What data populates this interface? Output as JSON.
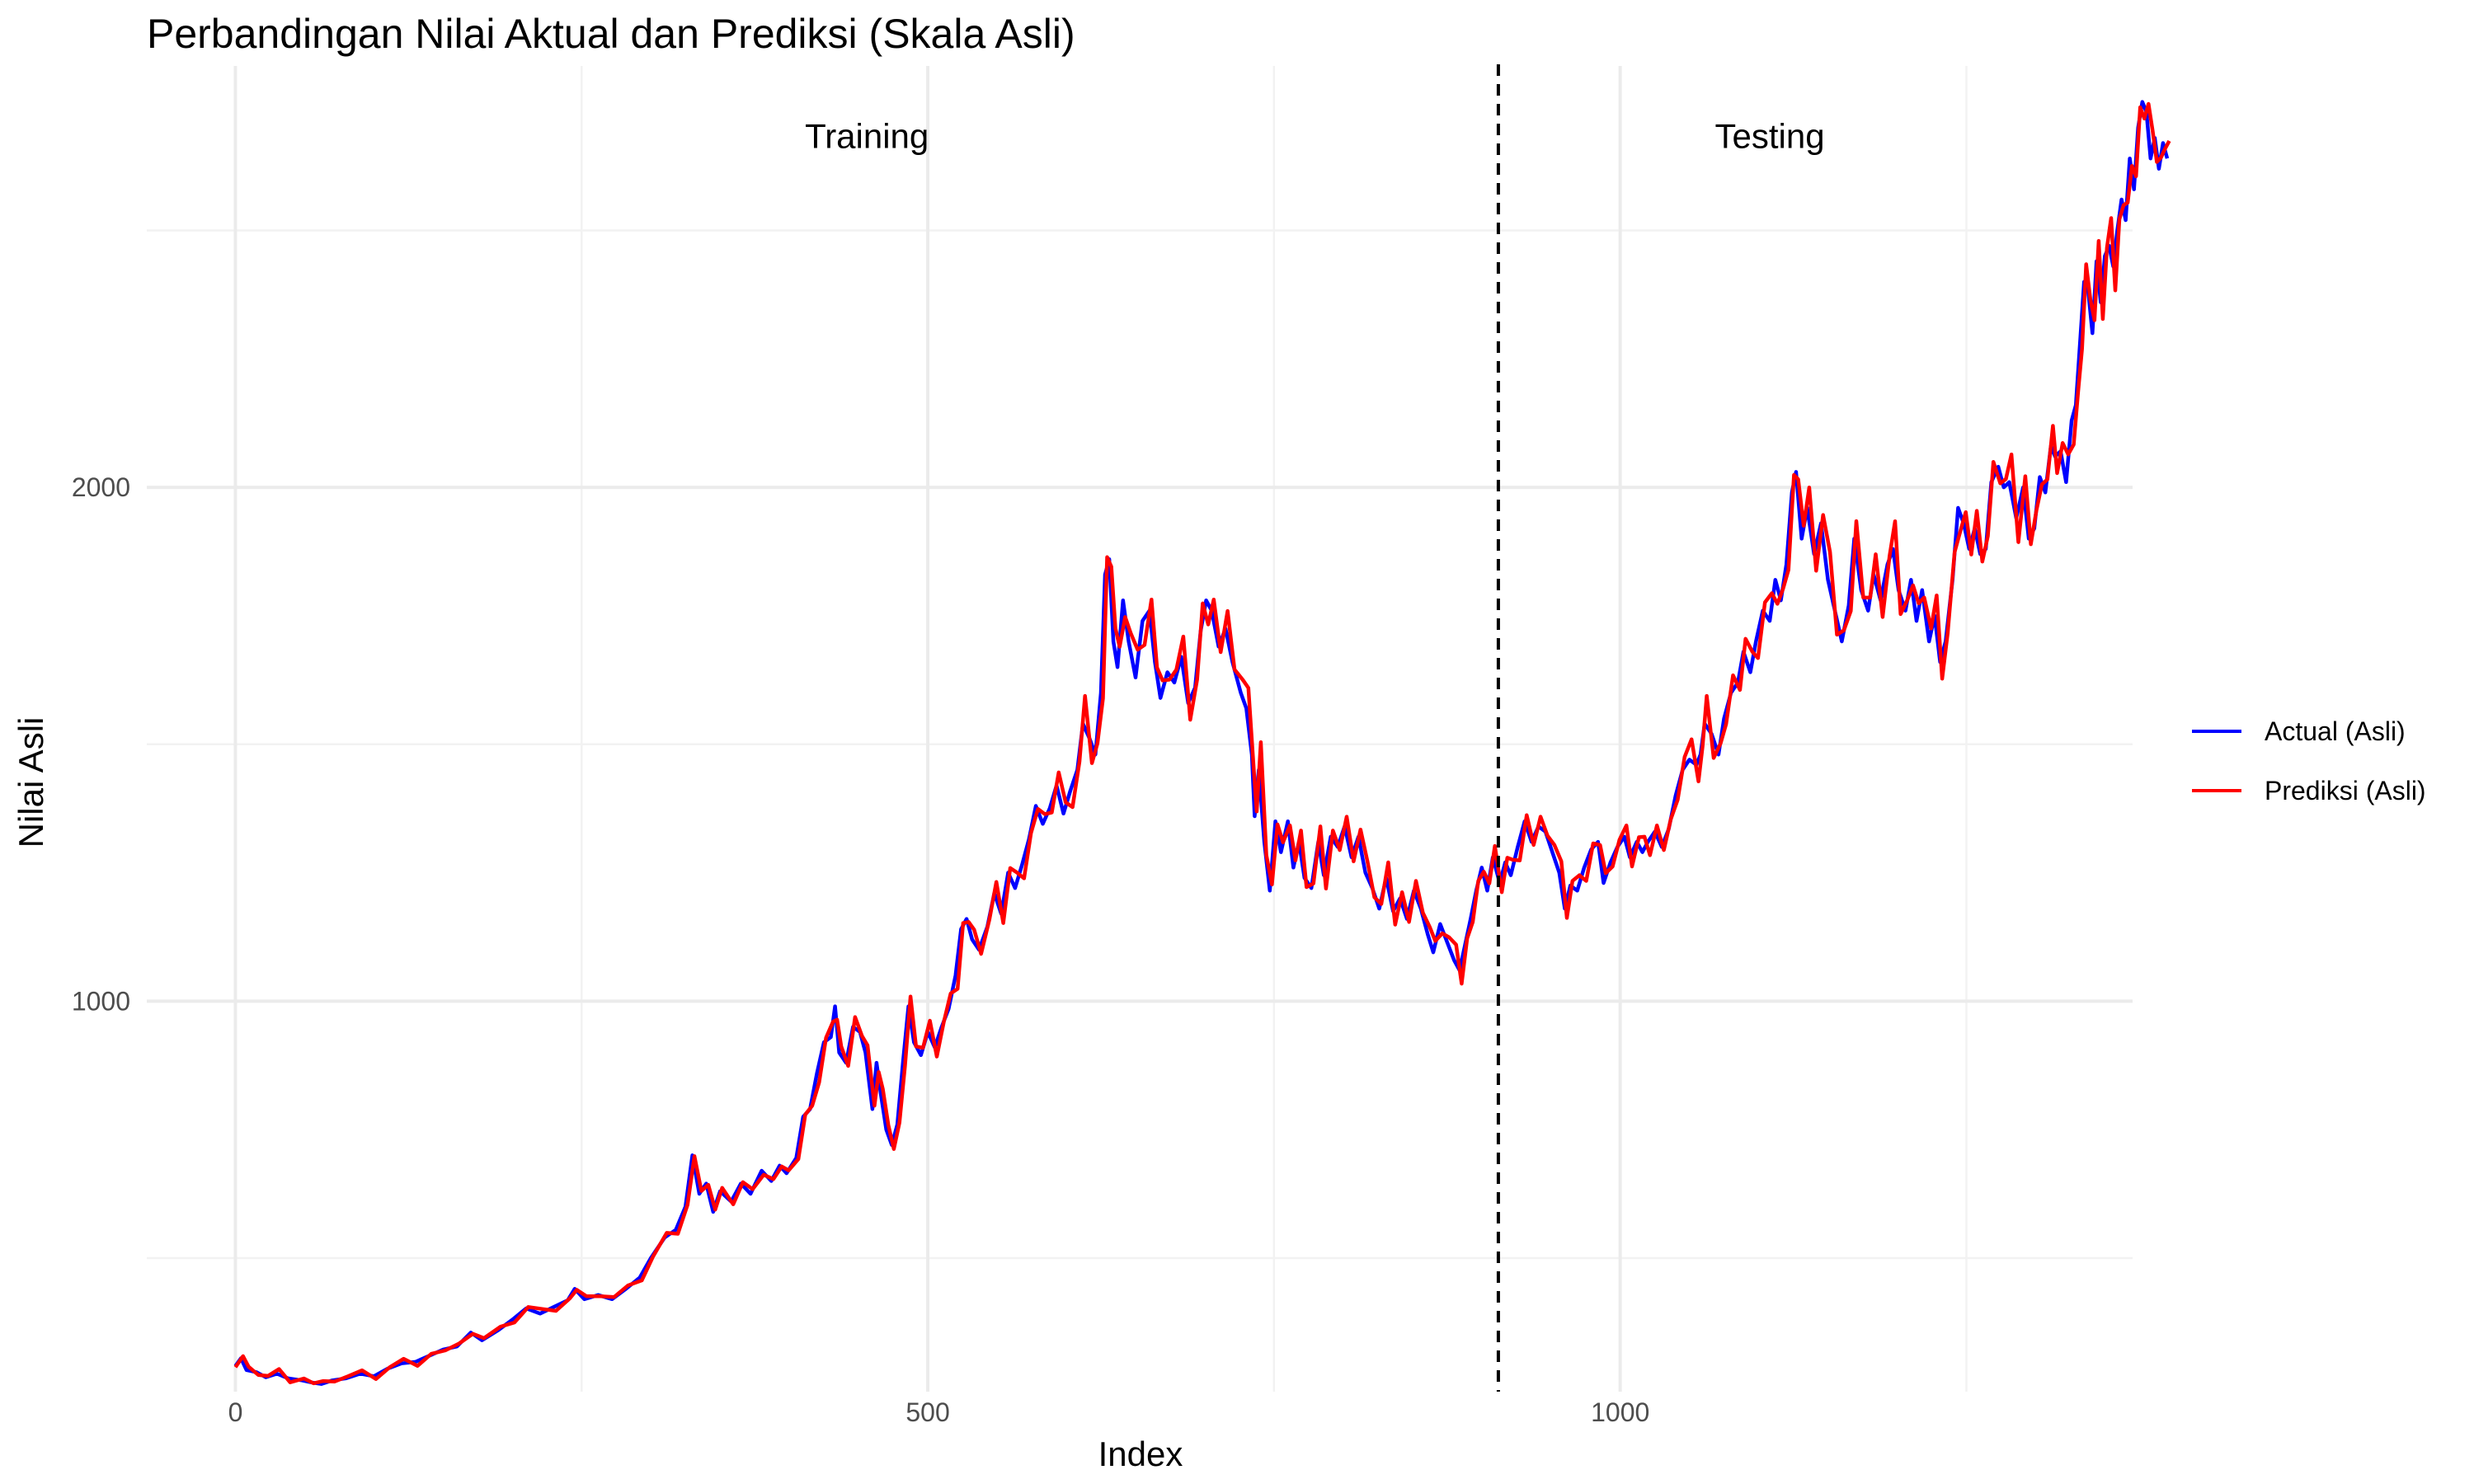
{
  "chart_data": {
    "type": "line",
    "title": "Perbandingan Nilai Aktual dan Prediksi (Skala Asli)",
    "xlabel": "Index",
    "ylabel": "Nilai Asli",
    "xlim": [
      -64,
      1370
    ],
    "ylim": [
      240,
      2820
    ],
    "x_ticks": [
      0,
      500,
      1000
    ],
    "y_ticks": [
      1000,
      2000
    ],
    "grid": true,
    "legend_position": "right",
    "split_index": 912,
    "annotations": [
      {
        "label": "Training",
        "x": 456,
        "y": 2660
      },
      {
        "label": "Testing",
        "x": 1108,
        "y": 2660
      }
    ],
    "series": [
      {
        "name": "Actual (Asli)",
        "color": "#0000ff"
      },
      {
        "name": "Prediksi (Asli)",
        "color": "#ff0000"
      }
    ],
    "anchors": [
      [
        0,
        290
      ],
      [
        4,
        305
      ],
      [
        8,
        282
      ],
      [
        15,
        278
      ],
      [
        22,
        268
      ],
      [
        30,
        275
      ],
      [
        38,
        266
      ],
      [
        48,
        262
      ],
      [
        55,
        258
      ],
      [
        62,
        255
      ],
      [
        70,
        262
      ],
      [
        80,
        266
      ],
      [
        90,
        275
      ],
      [
        100,
        270
      ],
      [
        110,
        285
      ],
      [
        120,
        295
      ],
      [
        130,
        298
      ],
      [
        140,
        310
      ],
      [
        150,
        322
      ],
      [
        160,
        328
      ],
      [
        170,
        355
      ],
      [
        178,
        340
      ],
      [
        190,
        360
      ],
      [
        200,
        380
      ],
      [
        210,
        402
      ],
      [
        220,
        392
      ],
      [
        230,
        405
      ],
      [
        240,
        418
      ],
      [
        245,
        440
      ],
      [
        252,
        420
      ],
      [
        262,
        428
      ],
      [
        272,
        420
      ],
      [
        282,
        440
      ],
      [
        292,
        462
      ],
      [
        300,
        500
      ],
      [
        310,
        540
      ],
      [
        318,
        555
      ],
      [
        325,
        600
      ],
      [
        330,
        700
      ],
      [
        335,
        625
      ],
      [
        340,
        645
      ],
      [
        345,
        590
      ],
      [
        350,
        630
      ],
      [
        358,
        610
      ],
      [
        365,
        645
      ],
      [
        372,
        625
      ],
      [
        380,
        670
      ],
      [
        387,
        650
      ],
      [
        393,
        680
      ],
      [
        398,
        665
      ],
      [
        405,
        695
      ],
      [
        410,
        775
      ],
      [
        415,
        790
      ],
      [
        420,
        860
      ],
      [
        425,
        920
      ],
      [
        430,
        930
      ],
      [
        433,
        990
      ],
      [
        436,
        900
      ],
      [
        441,
        880
      ],
      [
        446,
        950
      ],
      [
        451,
        940
      ],
      [
        455,
        900
      ],
      [
        460,
        790
      ],
      [
        463,
        880
      ],
      [
        466,
        820
      ],
      [
        470,
        750
      ],
      [
        474,
        720
      ],
      [
        478,
        760
      ],
      [
        482,
        880
      ],
      [
        486,
        990
      ],
      [
        490,
        920
      ],
      [
        495,
        895
      ],
      [
        500,
        940
      ],
      [
        505,
        910
      ],
      [
        510,
        950
      ],
      [
        515,
        985
      ],
      [
        520,
        1050
      ],
      [
        524,
        1140
      ],
      [
        528,
        1160
      ],
      [
        532,
        1120
      ],
      [
        537,
        1100
      ],
      [
        543,
        1145
      ],
      [
        548,
        1210
      ],
      [
        553,
        1170
      ],
      [
        558,
        1250
      ],
      [
        563,
        1220
      ],
      [
        568,
        1265
      ],
      [
        573,
        1315
      ],
      [
        578,
        1380
      ],
      [
        583,
        1345
      ],
      [
        588,
        1375
      ],
      [
        593,
        1420
      ],
      [
        598,
        1365
      ],
      [
        603,
        1410
      ],
      [
        608,
        1450
      ],
      [
        612,
        1540
      ],
      [
        617,
        1510
      ],
      [
        621,
        1480
      ],
      [
        625,
        1600
      ],
      [
        628,
        1830
      ],
      [
        631,
        1860
      ],
      [
        634,
        1700
      ],
      [
        637,
        1650
      ],
      [
        641,
        1780
      ],
      [
        645,
        1700
      ],
      [
        650,
        1630
      ],
      [
        655,
        1740
      ],
      [
        660,
        1760
      ],
      [
        664,
        1660
      ],
      [
        668,
        1590
      ],
      [
        673,
        1640
      ],
      [
        678,
        1620
      ],
      [
        683,
        1670
      ],
      [
        688,
        1580
      ],
      [
        693,
        1610
      ],
      [
        697,
        1720
      ],
      [
        701,
        1780
      ],
      [
        705,
        1760
      ],
      [
        710,
        1690
      ],
      [
        715,
        1725
      ],
      [
        720,
        1660
      ],
      [
        726,
        1600
      ],
      [
        730,
        1570
      ],
      [
        734,
        1480
      ],
      [
        736,
        1360
      ],
      [
        739,
        1450
      ],
      [
        743,
        1310
      ],
      [
        747,
        1215
      ],
      [
        751,
        1350
      ],
      [
        755,
        1290
      ],
      [
        760,
        1350
      ],
      [
        764,
        1260
      ],
      [
        768,
        1310
      ],
      [
        772,
        1240
      ],
      [
        777,
        1220
      ],
      [
        782,
        1310
      ],
      [
        786,
        1245
      ],
      [
        791,
        1320
      ],
      [
        796,
        1300
      ],
      [
        801,
        1340
      ],
      [
        806,
        1280
      ],
      [
        811,
        1320
      ],
      [
        816,
        1250
      ],
      [
        821,
        1220
      ],
      [
        826,
        1180
      ],
      [
        831,
        1240
      ],
      [
        836,
        1175
      ],
      [
        841,
        1200
      ],
      [
        846,
        1160
      ],
      [
        851,
        1215
      ],
      [
        856,
        1180
      ],
      [
        861,
        1130
      ],
      [
        865,
        1095
      ],
      [
        870,
        1150
      ],
      [
        875,
        1115
      ],
      [
        880,
        1080
      ],
      [
        884,
        1060
      ],
      [
        888,
        1110
      ],
      [
        892,
        1160
      ],
      [
        896,
        1215
      ],
      [
        900,
        1260
      ],
      [
        904,
        1215
      ],
      [
        908,
        1280
      ],
      [
        913,
        1230
      ],
      [
        917,
        1270
      ],
      [
        921,
        1245
      ],
      [
        926,
        1300
      ],
      [
        931,
        1350
      ],
      [
        936,
        1310
      ],
      [
        941,
        1340
      ],
      [
        946,
        1330
      ],
      [
        951,
        1290
      ],
      [
        956,
        1250
      ],
      [
        960,
        1180
      ],
      [
        964,
        1225
      ],
      [
        969,
        1215
      ],
      [
        974,
        1260
      ],
      [
        979,
        1295
      ],
      [
        984,
        1310
      ],
      [
        988,
        1230
      ],
      [
        993,
        1270
      ],
      [
        998,
        1300
      ],
      [
        1003,
        1320
      ],
      [
        1007,
        1280
      ],
      [
        1012,
        1310
      ],
      [
        1016,
        1290
      ],
      [
        1020,
        1310
      ],
      [
        1025,
        1330
      ],
      [
        1030,
        1300
      ],
      [
        1035,
        1335
      ],
      [
        1040,
        1400
      ],
      [
        1045,
        1450
      ],
      [
        1050,
        1470
      ],
      [
        1055,
        1460
      ],
      [
        1058,
        1480
      ],
      [
        1061,
        1540
      ],
      [
        1066,
        1520
      ],
      [
        1071,
        1480
      ],
      [
        1075,
        1550
      ],
      [
        1080,
        1600
      ],
      [
        1085,
        1620
      ],
      [
        1089,
        1680
      ],
      [
        1094,
        1640
      ],
      [
        1098,
        1700
      ],
      [
        1103,
        1760
      ],
      [
        1108,
        1740
      ],
      [
        1112,
        1820
      ],
      [
        1116,
        1780
      ],
      [
        1120,
        1850
      ],
      [
        1124,
        1990
      ],
      [
        1127,
        2030
      ],
      [
        1131,
        1900
      ],
      [
        1135,
        1960
      ],
      [
        1140,
        1870
      ],
      [
        1145,
        1930
      ],
      [
        1150,
        1820
      ],
      [
        1155,
        1760
      ],
      [
        1160,
        1700
      ],
      [
        1165,
        1770
      ],
      [
        1169,
        1900
      ],
      [
        1174,
        1800
      ],
      [
        1179,
        1760
      ],
      [
        1183,
        1830
      ],
      [
        1188,
        1780
      ],
      [
        1193,
        1850
      ],
      [
        1197,
        1880
      ],
      [
        1201,
        1800
      ],
      [
        1206,
        1760
      ],
      [
        1210,
        1820
      ],
      [
        1214,
        1740
      ],
      [
        1218,
        1800
      ],
      [
        1223,
        1700
      ],
      [
        1227,
        1750
      ],
      [
        1231,
        1660
      ],
      [
        1235,
        1700
      ],
      [
        1240,
        1820
      ],
      [
        1244,
        1960
      ],
      [
        1248,
        1930
      ],
      [
        1252,
        1880
      ],
      [
        1256,
        1920
      ],
      [
        1260,
        1870
      ],
      [
        1264,
        1880
      ],
      [
        1268,
        2010
      ],
      [
        1273,
        2040
      ],
      [
        1277,
        2000
      ],
      [
        1281,
        2010
      ],
      [
        1286,
        1940
      ],
      [
        1291,
        2000
      ],
      [
        1295,
        1900
      ],
      [
        1299,
        1920
      ],
      [
        1303,
        2020
      ],
      [
        1307,
        1990
      ],
      [
        1311,
        2080
      ],
      [
        1314,
        2060
      ],
      [
        1318,
        2070
      ],
      [
        1322,
        2010
      ],
      [
        1326,
        2130
      ],
      [
        1329,
        2160
      ],
      [
        1332,
        2280
      ],
      [
        1335,
        2400
      ],
      [
        1338,
        2380
      ],
      [
        1341,
        2300
      ],
      [
        1344,
        2440
      ],
      [
        1347,
        2360
      ],
      [
        1350,
        2450
      ],
      [
        1353,
        2470
      ],
      [
        1356,
        2430
      ],
      [
        1359,
        2500
      ],
      [
        1362,
        2560
      ],
      [
        1365,
        2520
      ],
      [
        1368,
        2640
      ],
      [
        1371,
        2580
      ],
      [
        1374,
        2700
      ],
      [
        1377,
        2750
      ],
      [
        1380,
        2730
      ],
      [
        1383,
        2640
      ],
      [
        1386,
        2680
      ],
      [
        1389,
        2620
      ],
      [
        1392,
        2670
      ],
      [
        1395,
        2640
      ]
    ]
  }
}
